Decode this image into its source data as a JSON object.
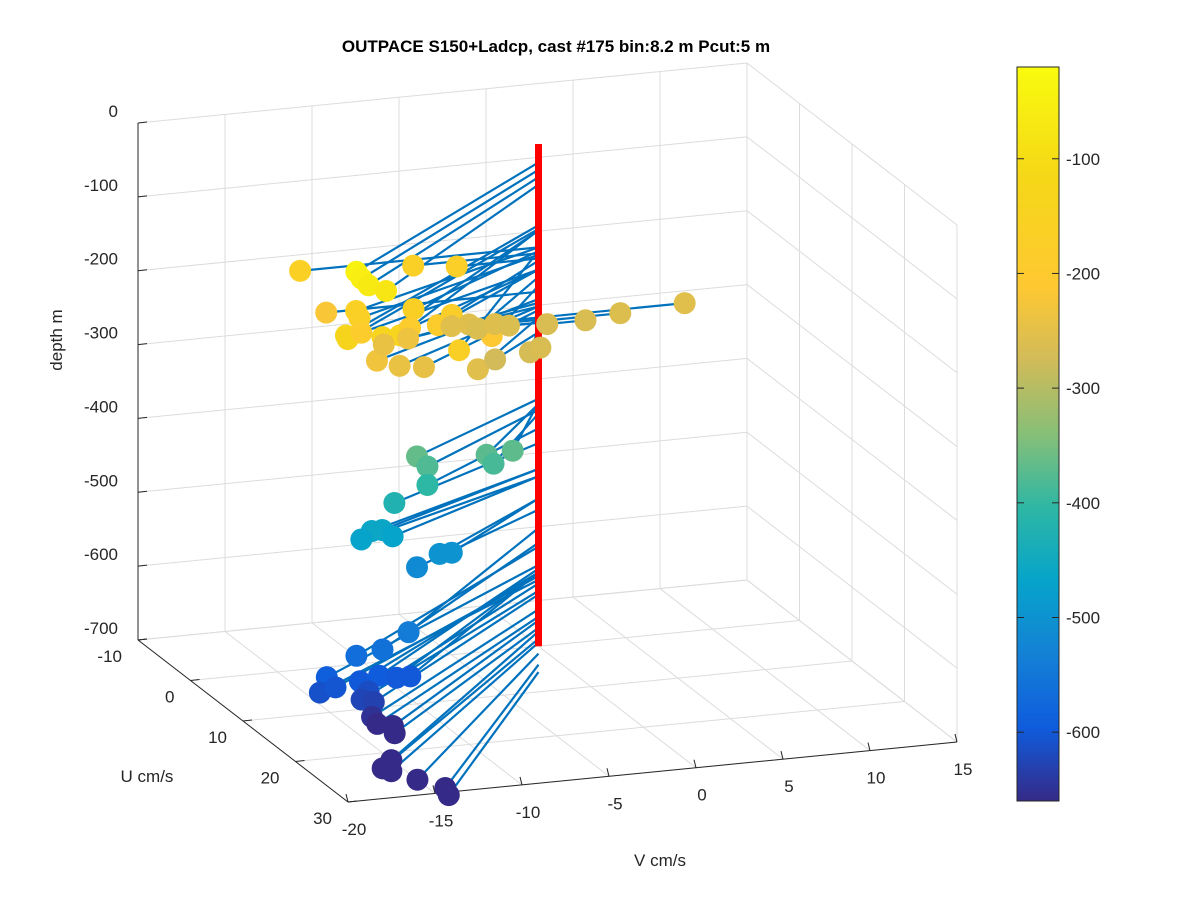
{
  "chart_data": {
    "type": "scatter",
    "title": "OUTPACE S150+Ladcp, cast #175 bin:8.2 m  Pcut:5 m",
    "xlabel": "V cm/s",
    "ylabel": "U cm/s",
    "zlabel": "depth m",
    "xlim": [
      -20,
      15
    ],
    "ylim": [
      -10,
      30
    ],
    "zlim": [
      -700,
      0
    ],
    "x_ticks": [
      "-20",
      "-15",
      "-10",
      "-5",
      "0",
      "5",
      "10",
      "15"
    ],
    "y_ticks": [
      "-10",
      "0",
      "10",
      "20",
      "30"
    ],
    "z_ticks": [
      "0",
      "-100",
      "-200",
      "-300",
      "-400",
      "-500",
      "-600",
      "-700"
    ],
    "colorbar": {
      "ticks": [
        "-100",
        "-200",
        "-300",
        "-400",
        "-500",
        "-600"
      ],
      "range": [
        -660,
        -20
      ],
      "colormap": "parula"
    },
    "grid": true,
    "view": "3d",
    "profile_color": "#ff0000",
    "stick_color": "#0072bd",
    "points": [
      {
        "x": -16.5,
        "u": 20,
        "z": -45
      },
      {
        "x": -16.2,
        "u": 20,
        "z": -55
      },
      {
        "x": -15.8,
        "u": 20,
        "z": -65
      },
      {
        "x": -14.8,
        "u": 20,
        "z": -75
      },
      {
        "x": -17.1,
        "u": 20,
        "z": -130
      },
      {
        "x": -17.0,
        "u": 20,
        "z": -135
      },
      {
        "x": -15.0,
        "u": 20,
        "z": -137
      },
      {
        "x": -14.0,
        "u": 20,
        "z": -137
      },
      {
        "x": -13.7,
        "u": 0,
        "z": -160
      },
      {
        "x": -13.5,
        "u": 10,
        "z": -160
      },
      {
        "x": -13.3,
        "u": 10,
        "z": -170
      },
      {
        "x": -13.2,
        "u": 10,
        "z": -190
      },
      {
        "x": -10.2,
        "u": 10,
        "z": -165
      },
      {
        "x": -10.6,
        "u": 20,
        "z": -165
      },
      {
        "x": -10.4,
        "u": 10,
        "z": -190
      },
      {
        "x": -8.8,
        "u": 10,
        "z": -190
      },
      {
        "x": -8.0,
        "u": 10,
        "z": -178
      },
      {
        "x": -7.2,
        "u": 0,
        "z": -168
      },
      {
        "x": -4.7,
        "u": 0,
        "z": -175
      },
      {
        "x": -6.5,
        "u": 10,
        "z": -200
      },
      {
        "x": -5.7,
        "u": 10,
        "z": -212
      },
      {
        "x": -12.2,
        "u": 0,
        "z": -220
      },
      {
        "x": -12.3,
        "u": 10,
        "z": -230
      },
      {
        "x": -11.0,
        "u": 10,
        "z": -240
      },
      {
        "x": -9.6,
        "u": 10,
        "z": -245
      },
      {
        "x": -10.4,
        "u": 5,
        "z": -240
      },
      {
        "x": -9.0,
        "u": 5,
        "z": -235
      },
      {
        "x": -6.5,
        "u": 10,
        "z": -255
      },
      {
        "x": -5.0,
        "u": 0,
        "z": -255
      },
      {
        "x": -4.0,
        "u": 0,
        "z": -255
      },
      {
        "x": -3.5,
        "u": 0,
        "z": -262
      },
      {
        "x": -2.5,
        "u": 0,
        "z": -258
      },
      {
        "x": -1.7,
        "u": 0,
        "z": -262
      },
      {
        "x": -2.0,
        "u": 5,
        "z": -270
      },
      {
        "x": -1.4,
        "u": 5,
        "z": -265
      },
      {
        "x": -4.0,
        "u": 5,
        "z": -275
      },
      {
        "x": 0.5,
        "u": 0,
        "z": -265
      },
      {
        "x": 2.7,
        "u": 0,
        "z": -265
      },
      {
        "x": 4.7,
        "u": 0,
        "z": -260
      },
      {
        "x": 8.4,
        "u": 0,
        "z": -255
      },
      {
        "x": -10.0,
        "u": 10,
        "z": -365
      },
      {
        "x": -9.4,
        "u": 10,
        "z": -380
      },
      {
        "x": -9.4,
        "u": 10,
        "z": -405
      },
      {
        "x": -6.0,
        "u": 10,
        "z": -372
      },
      {
        "x": -5.6,
        "u": 10,
        "z": -385
      },
      {
        "x": -4.5,
        "u": 10,
        "z": -370
      },
      {
        "x": -11.3,
        "u": 10,
        "z": -425
      },
      {
        "x": -12.6,
        "u": 10,
        "z": -460
      },
      {
        "x": -13.2,
        "u": 10,
        "z": -470
      },
      {
        "x": -12.0,
        "u": 10,
        "z": -460
      },
      {
        "x": -11.4,
        "u": 10,
        "z": -470
      },
      {
        "x": -8.7,
        "u": 10,
        "z": -500
      },
      {
        "x": -10.0,
        "u": 10,
        "z": -515
      },
      {
        "x": -8.0,
        "u": 10,
        "z": -500
      },
      {
        "x": -13.5,
        "u": 20,
        "z": -540
      },
      {
        "x": -15.0,
        "u": 20,
        "z": -560
      },
      {
        "x": -16.5,
        "u": 20,
        "z": -565
      },
      {
        "x": -18.2,
        "u": 20,
        "z": -590
      },
      {
        "x": -18.6,
        "u": 20,
        "z": -610
      },
      {
        "x": -17.7,
        "u": 20,
        "z": -605
      },
      {
        "x": -16.3,
        "u": 20,
        "z": -600
      },
      {
        "x": -15.2,
        "u": 20,
        "z": -595
      },
      {
        "x": -15.8,
        "u": 20,
        "z": -615
      },
      {
        "x": -14.2,
        "u": 20,
        "z": -600
      },
      {
        "x": -13.4,
        "u": 20,
        "z": -600
      },
      {
        "x": -16.2,
        "u": 20,
        "z": -625
      },
      {
        "x": -15.5,
        "u": 20,
        "z": -630
      },
      {
        "x": -15.6,
        "u": 20,
        "z": -650
      },
      {
        "x": -15.3,
        "u": 20,
        "z": -660
      },
      {
        "x": -14.4,
        "u": 20,
        "z": -665
      },
      {
        "x": -14.3,
        "u": 20,
        "z": -675
      },
      {
        "x": -16.0,
        "u": 25,
        "z": -680
      },
      {
        "x": -16.5,
        "u": 25,
        "z": -690
      },
      {
        "x": -16.0,
        "u": 25,
        "z": -695
      },
      {
        "x": -14.5,
        "u": 25,
        "z": -710
      },
      {
        "x": -12.9,
        "u": 25,
        "z": -725
      },
      {
        "x": -12.7,
        "u": 25,
        "z": -735
      }
    ]
  }
}
